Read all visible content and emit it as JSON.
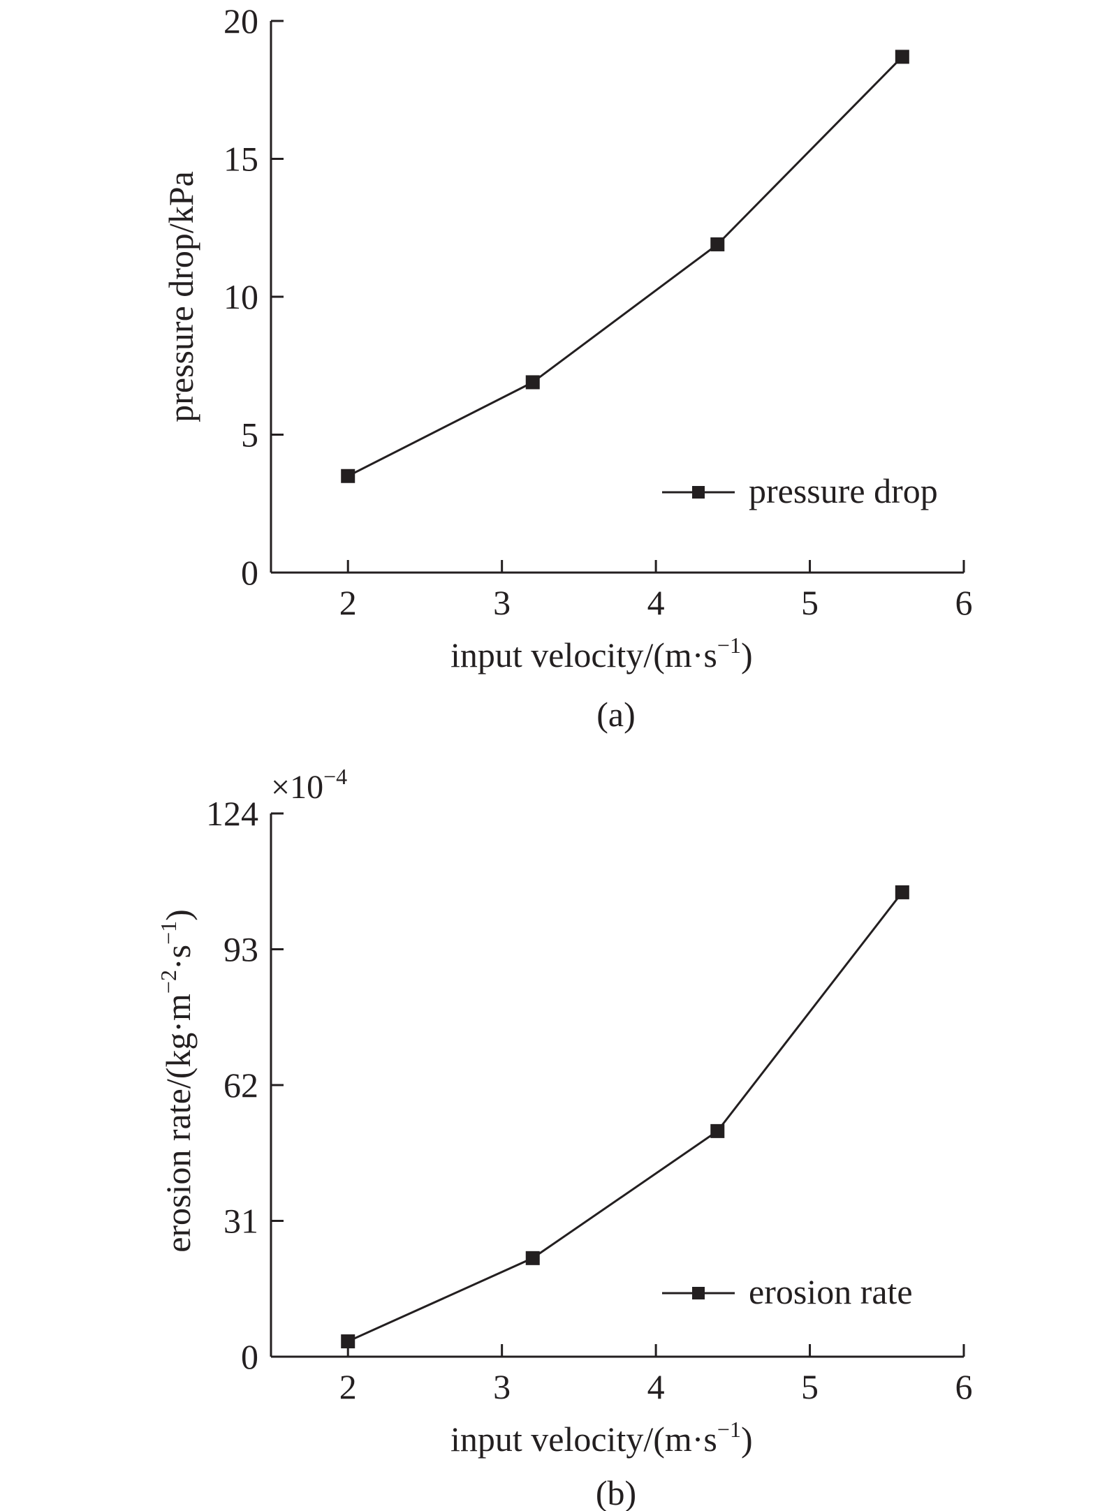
{
  "chart_data": [
    {
      "type": "line",
      "panel_label": "(a)",
      "xlabel": "input velocity/(m·s",
      "xlabel_sup": "−1",
      "xlabel_end": ")",
      "ylabel": "pressure drop/kPa",
      "xlim": [
        1.5,
        6
      ],
      "ylim": [
        0,
        20
      ],
      "x_ticks": [
        "2",
        "3",
        "4",
        "5",
        "6"
      ],
      "y_ticks": [
        "0",
        "5",
        "10",
        "15",
        "20"
      ],
      "grid": false,
      "legend_position": "bottom-right",
      "series": [
        {
          "name": "pressure drop",
          "x": [
            2,
            3.2,
            4.4,
            5.6
          ],
          "y": [
            3.5,
            6.9,
            11.9,
            18.7
          ]
        }
      ]
    },
    {
      "type": "line",
      "panel_label": "(b)",
      "xlabel": "input velocity/(m·s",
      "xlabel_sup": "−1",
      "xlabel_end": ")",
      "ylabel_parts": [
        "erosion rate/(kg·m",
        "−2",
        "·s",
        "−1",
        ")"
      ],
      "multiplier": "×10",
      "multiplier_sup": "−4",
      "xlim": [
        1.5,
        6
      ],
      "ylim": [
        0,
        124
      ],
      "x_ticks": [
        "2",
        "3",
        "4",
        "5",
        "6"
      ],
      "y_ticks": [
        "0",
        "31",
        "62",
        "93",
        "124"
      ],
      "grid": false,
      "legend_position": "bottom-right",
      "series": [
        {
          "name": "erosion rate",
          "x": [
            2,
            3.2,
            4.4,
            5.6
          ],
          "y": [
            3.5,
            22.5,
            51.5,
            106
          ]
        }
      ]
    }
  ]
}
